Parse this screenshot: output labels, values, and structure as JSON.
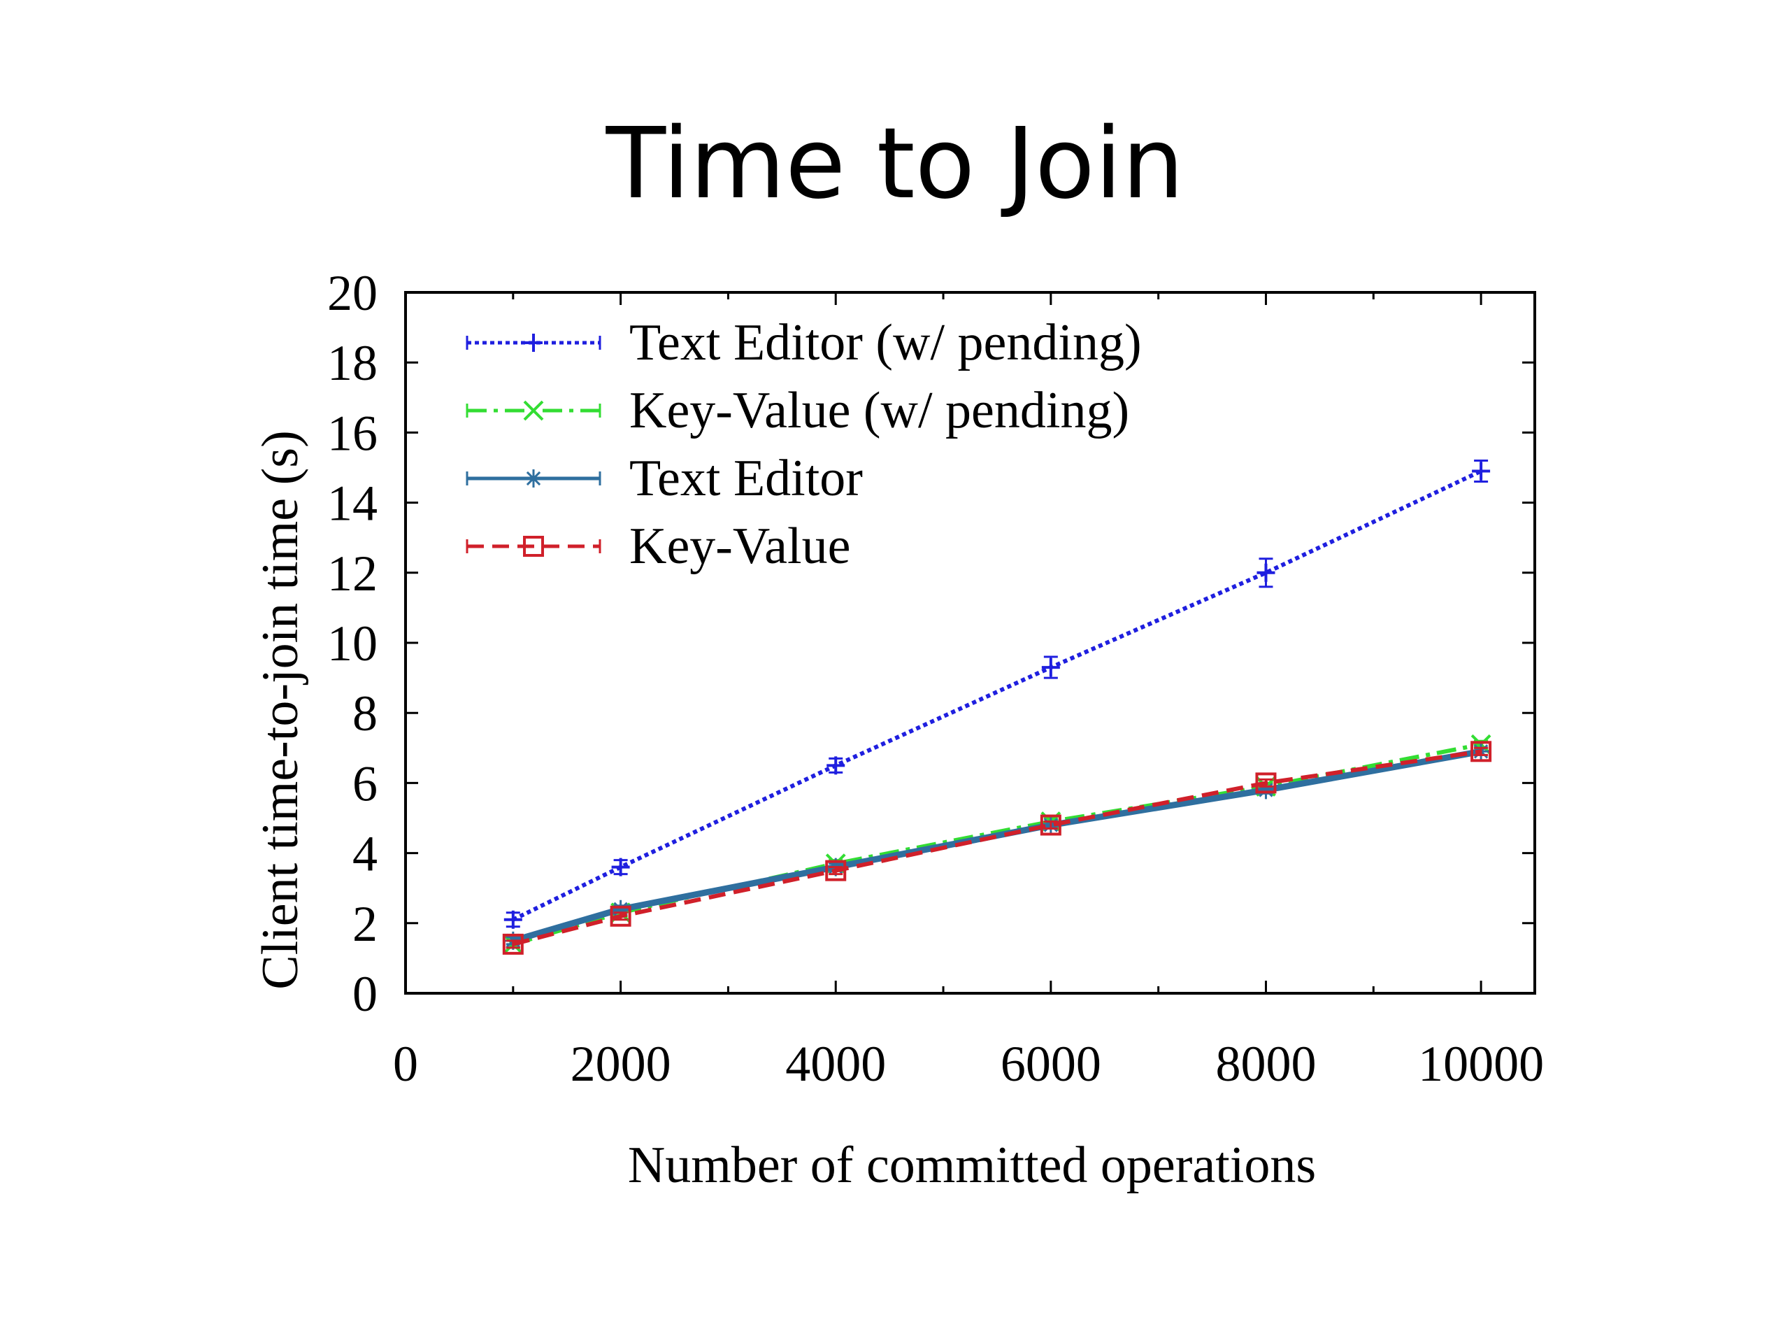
{
  "slide": {
    "title": "Time to Join"
  },
  "chart_data": {
    "type": "line",
    "title": "",
    "xlabel": "Number of committed operations",
    "ylabel": "Client time-to-join time (s)",
    "xlim": [
      0,
      10500
    ],
    "ylim": [
      0,
      20
    ],
    "x_ticks": [
      "0",
      "2000",
      "4000",
      "6000",
      "8000",
      "10000"
    ],
    "y_ticks": [
      "0",
      "2",
      "4",
      "6",
      "8",
      "10",
      "12",
      "14",
      "16",
      "18",
      "20"
    ],
    "grid": false,
    "legend_position": "top-left",
    "x": [
      1000,
      2000,
      4000,
      6000,
      8000,
      10000
    ],
    "series": [
      {
        "name": "Text Editor (w/ pending)",
        "color": "#1f1fdf",
        "marker": "plus",
        "dash": "dotted",
        "values": [
          2.1,
          3.6,
          6.5,
          9.3,
          12.0,
          14.9
        ],
        "error": [
          0.2,
          0.2,
          0.2,
          0.3,
          0.4,
          0.3
        ]
      },
      {
        "name": "Key-Value (w/ pending)",
        "color": "#33dd33",
        "marker": "x",
        "dash": "dashdot",
        "values": [
          1.4,
          2.3,
          3.7,
          4.9,
          5.9,
          7.1
        ],
        "error": [
          0.1,
          0.1,
          0.1,
          0.1,
          0.1,
          0.1
        ]
      },
      {
        "name": "Text Editor",
        "color": "#2f6f9f",
        "marker": "star",
        "dash": "solid",
        "values": [
          1.5,
          2.4,
          3.6,
          4.8,
          5.8,
          6.9
        ],
        "error": [
          0.1,
          0.1,
          0.1,
          0.1,
          0.1,
          0.1
        ]
      },
      {
        "name": "Key-Value",
        "color": "#d0202a",
        "marker": "square",
        "dash": "dashed",
        "values": [
          1.4,
          2.2,
          3.5,
          4.8,
          6.0,
          6.9
        ],
        "error": [
          0.1,
          0.1,
          0.1,
          0.1,
          0.1,
          0.1
        ]
      }
    ]
  }
}
